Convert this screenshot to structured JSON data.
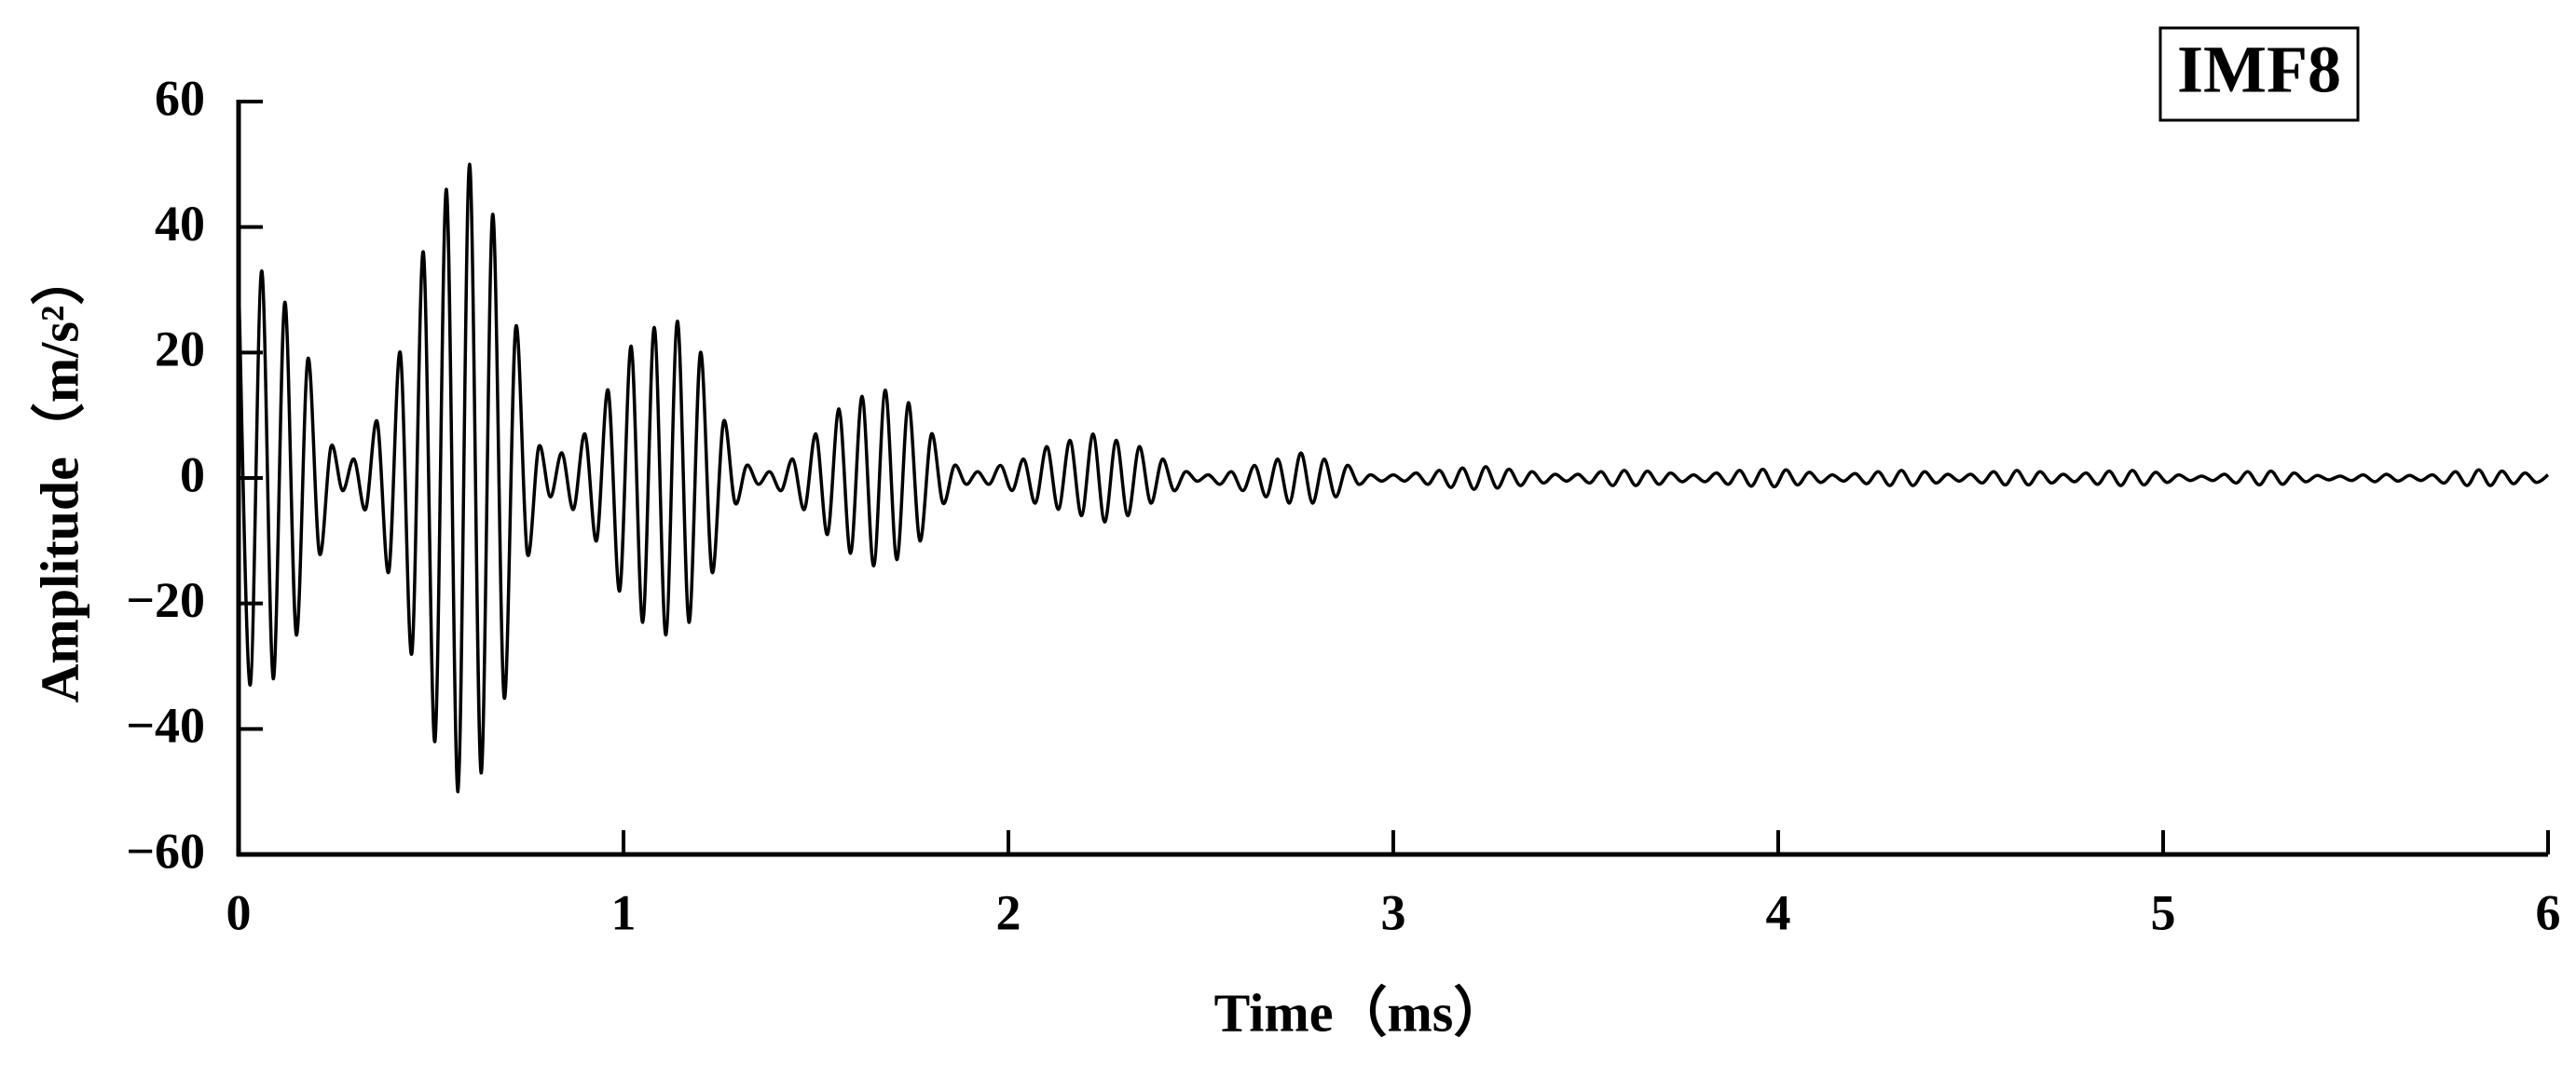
{
  "chart_data": {
    "type": "line",
    "title": "IMF8",
    "x_label": "Time（ms）",
    "y_label": "Amplitude（m/s²）",
    "color": "#000000",
    "grid": false,
    "xlim": [
      0,
      6
    ],
    "xticks": [
      0,
      1,
      2,
      3,
      4,
      5,
      6
    ],
    "ylim": [
      -60,
      60
    ],
    "yticks": [
      {
        "value": -60,
        "label": "−60"
      },
      {
        "value": -40,
        "label": "−40"
      },
      {
        "value": -20,
        "label": "−20"
      },
      0,
      20,
      40,
      60
    ],
    "x": [
      0,
      0.03,
      0.06,
      0.09,
      0.12,
      0.15,
      0.18,
      0.21,
      0.24,
      0.27,
      0.3,
      0.33,
      0.36,
      0.39,
      0.42,
      0.45,
      0.48,
      0.51,
      0.54,
      0.57,
      0.6,
      0.63,
      0.66,
      0.69,
      0.72,
      0.75,
      0.78,
      0.81,
      0.84,
      0.87,
      0.9,
      0.93,
      0.96,
      0.99,
      1.02,
      1.05,
      1.08,
      1.11,
      1.14,
      1.17,
      1.2,
      1.23,
      1.26,
      1.29,
      1.32,
      1.35,
      1.38,
      1.41,
      1.44,
      1.47,
      1.5,
      1.53,
      1.56,
      1.59,
      1.62,
      1.65,
      1.68,
      1.71,
      1.74,
      1.77,
      1.8,
      1.83,
      1.86,
      1.89,
      1.92,
      1.95,
      1.98,
      2.01,
      2.04,
      2.07,
      2.1,
      2.13,
      2.16,
      2.19,
      2.22,
      2.25,
      2.28,
      2.31,
      2.34,
      2.37,
      2.4,
      2.43,
      2.46,
      2.49,
      2.52,
      2.55,
      2.58,
      2.61,
      2.64,
      2.67,
      2.7,
      2.73,
      2.76,
      2.79,
      2.82,
      2.85,
      2.88,
      2.91,
      2.94,
      2.97,
      3,
      3.03,
      3.06,
      3.09,
      3.12,
      3.15,
      3.18,
      3.21,
      3.24,
      3.27,
      3.3,
      3.33,
      3.36,
      3.39,
      3.42,
      3.45,
      3.48,
      3.51,
      3.54,
      3.57,
      3.6,
      3.63,
      3.66,
      3.69,
      3.72,
      3.75,
      3.78,
      3.81,
      3.84,
      3.87,
      3.9,
      3.93,
      3.96,
      3.99,
      4.02,
      4.05,
      4.08,
      4.11,
      4.14,
      4.17,
      4.2,
      4.23,
      4.26,
      4.29,
      4.32,
      4.35,
      4.38,
      4.41,
      4.44,
      4.47,
      4.5,
      4.53,
      4.56,
      4.59,
      4.62,
      4.65,
      4.68,
      4.71,
      4.74,
      4.77,
      4.8,
      4.83,
      4.86,
      4.89,
      4.92,
      4.95,
      4.98,
      5.01,
      5.04,
      5.07,
      5.1,
      5.13,
      5.16,
      5.19,
      5.22,
      5.25,
      5.28,
      5.31,
      5.34,
      5.37,
      5.4,
      5.43,
      5.46,
      5.49,
      5.52,
      5.55,
      5.58,
      5.61,
      5.64,
      5.67,
      5.7,
      5.73,
      5.76,
      5.79,
      5.82,
      5.85,
      5.88,
      5.91,
      5.94,
      5.97,
      6
    ],
    "values": [
      32,
      -33,
      33,
      -32,
      28,
      -25,
      19,
      -12,
      5,
      -2,
      3,
      -5,
      9,
      -15,
      20,
      -28,
      36,
      -42,
      46,
      -50,
      50,
      -47,
      42,
      -35,
      24,
      -12,
      5,
      -3,
      4,
      -5,
      7,
      -10,
      14,
      -18,
      21,
      -23,
      24,
      -25,
      25,
      -23,
      20,
      -15,
      9,
      -4,
      2,
      -1,
      1,
      -2,
      3,
      -5,
      7,
      -9,
      11,
      -12,
      13,
      -14,
      14,
      -13,
      12,
      -10,
      7,
      -4,
      2,
      -1,
      1,
      -1,
      2,
      -2,
      3,
      -4,
      5,
      -5,
      6,
      -6,
      7,
      -7,
      6,
      -6,
      5,
      -4,
      3,
      -2,
      1,
      -0.5,
      0.5,
      -1,
      1,
      -2,
      2,
      -3,
      3,
      -4,
      4,
      -4,
      3,
      -3,
      2,
      -1,
      0.5,
      -0.5,
      0.5,
      -0.5,
      0.8,
      -1,
      1.2,
      -1.5,
      1.6,
      -1.8,
      1.8,
      -1.6,
      1.4,
      -1.2,
      1,
      -0.8,
      0.6,
      -0.5,
      0.6,
      -0.8,
      1,
      -1.2,
      1.2,
      -1.2,
      1.1,
      -1,
      0.8,
      -0.6,
      0.5,
      -0.6,
      0.8,
      -1,
      1.2,
      -1.3,
      1.4,
      -1.4,
      1.3,
      -1.1,
      0.9,
      -0.7,
      0.5,
      -0.5,
      0.7,
      -0.9,
      1,
      -1.2,
      1.2,
      -1.2,
      1,
      -0.8,
      0.6,
      -0.5,
      0.6,
      -0.8,
      1,
      -1.1,
      1.2,
      -1.1,
      1,
      -0.8,
      0.6,
      -0.6,
      0.8,
      -1,
      1.1,
      -1.2,
      1.2,
      -1.1,
      0.9,
      -0.7,
      0.5,
      -0.4,
      0.3,
      -0.4,
      0.6,
      -0.8,
      1,
      -1.1,
      1.1,
      -1,
      0.8,
      -0.6,
      0.4,
      -0.3,
      0.3,
      -0.4,
      0.5,
      -0.6,
      0.6,
      -0.5,
      0.4,
      -0.4,
      0.5,
      -0.8,
      1,
      -1.2,
      1.3,
      -1.2,
      1.1,
      -0.9,
      0.8,
      -0.7,
      0.5
    ]
  }
}
